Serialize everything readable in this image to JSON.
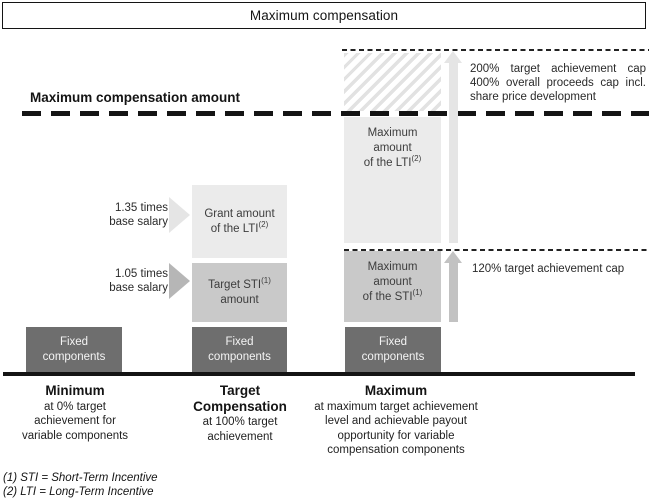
{
  "title": "Maximum compensation",
  "axis": {
    "max_comp_label": "Maximum compensation amount"
  },
  "caps": {
    "upper_lines": [
      "200% target achievement cap",
      "400% overall proceeds cap incl.",
      "share price development"
    ],
    "sti": "120% target achievement cap"
  },
  "multipliers": {
    "lti": "1.35 times\nbase salary",
    "sti": "1.05 times\nbase salary"
  },
  "boxes": {
    "grant_lti": {
      "line1": "Grant amount",
      "line2": "of the LTI",
      "sup": "(2)"
    },
    "target_sti": {
      "line1": "Target STI",
      "sup": "(1)",
      "line2": "amount"
    },
    "max_lti": {
      "line1": "Maximum",
      "line2": "amount",
      "line3": "of the LTI",
      "sup": "(2)"
    },
    "max_sti": {
      "line1": "Maximum",
      "line2": "amount",
      "line3": "of the STI",
      "sup": "(1)"
    },
    "fixed": "Fixed\ncomponents"
  },
  "columns": [
    {
      "heading": "Minimum",
      "subtext": "at 0% target\nachievement for\nvariable components"
    },
    {
      "heading": "Target\nCompensation",
      "subtext": "at 100% target\nachievement"
    },
    {
      "heading": "Maximum",
      "subtext": "at maximum target achievement\nlevel and achievable payout\nopportunity for variable\ncompensation components"
    }
  ],
  "footnotes": [
    "(1) STI = Short-Term Incentive",
    "(2) LTI = Long-Term Incentive"
  ],
  "colors": {
    "light_box": "#ebebeb",
    "medium_box": "#c9c9c9",
    "dark_box": "#6e6e6e",
    "light_arrow": "#e5e5e5",
    "medium_arrow": "#c2c2c2",
    "medium_tri": "#b6b6b6",
    "hatch_stripe": "#e2e2e2"
  }
}
